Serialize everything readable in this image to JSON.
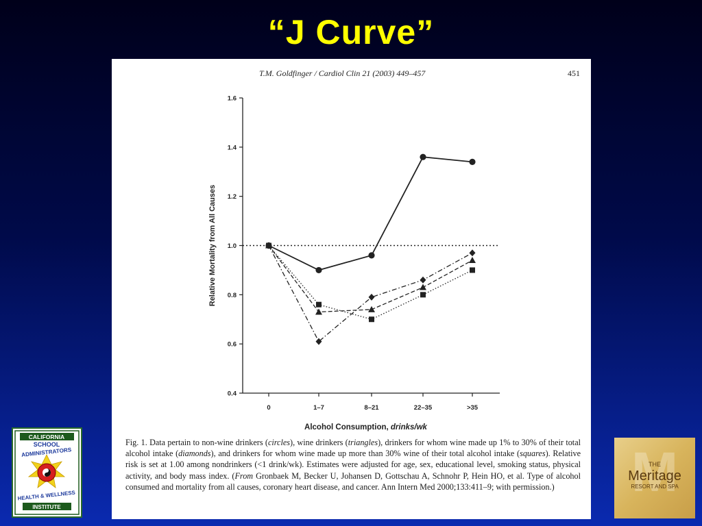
{
  "slide": {
    "title": "“J Curve”"
  },
  "paper": {
    "header": "T.M. Goldfinger / Cardiol Clin 21 (2003) 449–457",
    "page_number": "451",
    "caption": {
      "p1": "Fig. 1. Data pertain to non-wine drinkers (",
      "circles": "circles",
      "p2": "), wine drinkers (",
      "triangles": "triangles",
      "p3": "), drinkers for whom wine made up 1% to 30% of their total alcohol intake (",
      "diamonds": "diamonds",
      "p4": "), and drinkers for whom wine made up more than 30% wine of their total alcohol intake (",
      "squares": "squares",
      "p5": "). Relative risk is set at 1.00 among nondrinkers (<1 drink/wk). Estimates were adjusted for age, sex, educational level, smoking status, physical activity, and body mass index. (",
      "from": "From",
      "p6": " Gronbaek M, Becker U, Johansen D, Gottschau A, Schnohr P, Hein HO, et al. Type of alcohol consumed and mortality from all causes, coronary heart disease, and cancer. Ann Intern Med 2000;133:411–9; with permission.)"
    }
  },
  "chart_data": {
    "type": "line",
    "xlabel": "Alcohol Consumption, ",
    "xlabel_italic": "drinks/wk",
    "ylabel": "Relative Mortality from All Causes",
    "categories": [
      "0",
      "1–7",
      "8–21",
      "22–35",
      ">35"
    ],
    "ylim": [
      0.4,
      1.6
    ],
    "yticks": [
      "0.4",
      "0.6",
      "0.8",
      "1.0",
      "1.2",
      "1.4",
      "1.6"
    ],
    "reference_line": 1.0,
    "grid": false,
    "series": [
      {
        "marker": "circle",
        "line": "solid",
        "values": [
          1.0,
          0.9,
          0.96,
          1.36,
          1.34
        ]
      },
      {
        "marker": "triangle",
        "line": "dashed",
        "values": [
          1.0,
          0.73,
          0.74,
          0.83,
          0.94
        ]
      },
      {
        "marker": "diamond",
        "line": "dashdot",
        "values": [
          1.0,
          0.61,
          0.79,
          0.86,
          0.97
        ]
      },
      {
        "marker": "square",
        "line": "dotted",
        "values": [
          1.0,
          0.76,
          0.7,
          0.8,
          0.9
        ]
      }
    ]
  },
  "logos": {
    "left": {
      "line1": "CALIFORNIA",
      "line2": "SCHOOL",
      "line3": "ADMINISTRATORS",
      "line4": "HEALTH & WELLNESS",
      "line5": "INSTITUTE"
    },
    "right": {
      "line1": "THE",
      "line2": "Meritage",
      "line3": "RESORT AND SPA"
    }
  }
}
